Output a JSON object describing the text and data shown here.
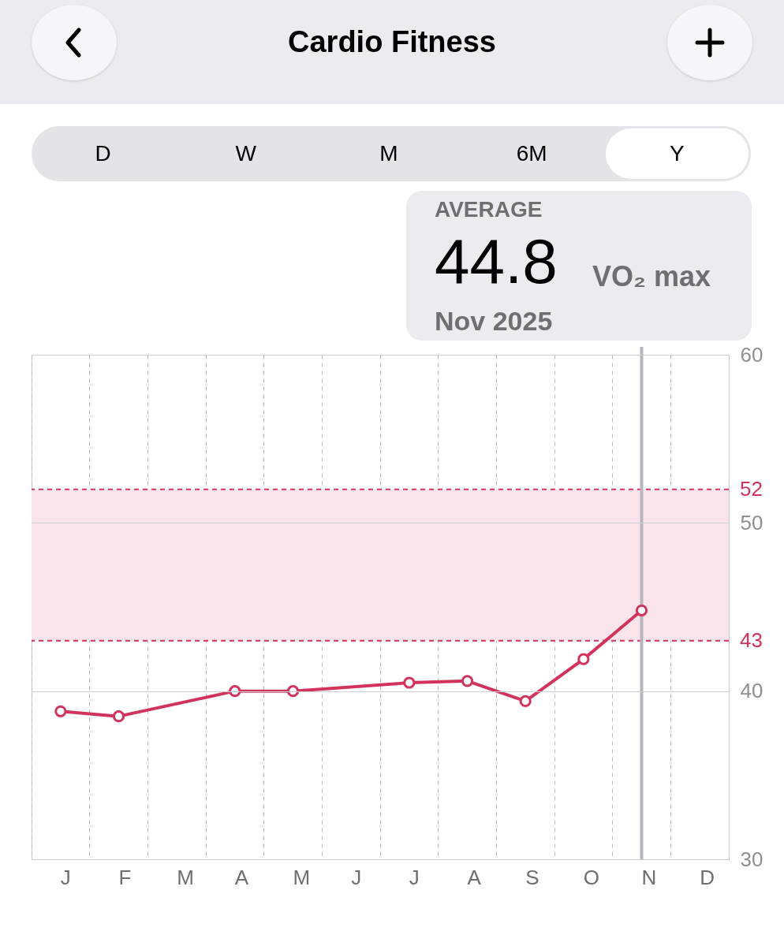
{
  "chart_data": {
    "type": "line",
    "title": "Cardio Fitness",
    "categories": [
      "J",
      "F",
      "M",
      "A",
      "M",
      "J",
      "J",
      "A",
      "S",
      "O",
      "N",
      "D"
    ],
    "series": [
      {
        "color": "#d2335c",
        "values": [
          38.8,
          38.5,
          null,
          40.0,
          40.0,
          null,
          40.5,
          40.6,
          39.4,
          41.9,
          44.8,
          null
        ]
      }
    ],
    "ylim": [
      30,
      60
    ],
    "yticks": [
      30,
      40,
      50,
      60
    ],
    "bands": [
      {
        "axis": "y",
        "from": 43,
        "to": 52,
        "color": "#f8e4ea"
      }
    ],
    "ref_lines": [
      {
        "axis": "y",
        "value": 52,
        "label": "52",
        "color": "#d2335c",
        "line_style": "dashed"
      },
      {
        "axis": "y",
        "value": 43,
        "label": "43",
        "color": "#d2335c",
        "line_style": "dashed"
      },
      {
        "axis": "x",
        "value": "N",
        "color": "#b5b5ba",
        "line_style": "solid"
      }
    ],
    "annotations": [
      "D",
      "W",
      "M",
      "6M",
      "Y",
      "AVERAGE",
      "44.8",
      "VO₂ max",
      "Nov 2025"
    ],
    "grid": true,
    "marker": "circle",
    "line_style": "solid"
  }
}
